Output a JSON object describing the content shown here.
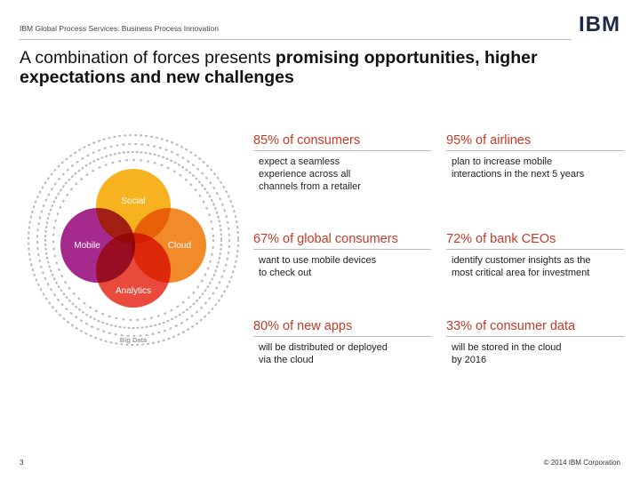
{
  "header": {
    "text": "IBM Global Process Services: Business Process Innovation",
    "logo": "IBM"
  },
  "title": {
    "plain": "A combination of forces presents",
    "emphasis": "promising opportunities, higher expectations and new challenges"
  },
  "diagram": {
    "labels": [
      "Social",
      "Mobile",
      "Cloud",
      "Analytics"
    ],
    "outer_label": "Big Data"
  },
  "stats": [
    {
      "headline": "85% of consumers",
      "description": [
        "expect a seamless",
        "experience across all",
        "channels from a retailer"
      ]
    },
    {
      "headline": "95% of airlines",
      "description": [
        "plan to increase mobile",
        "interactions in the next 5 years"
      ]
    },
    {
      "headline": "67% of global consumers",
      "description": [
        "want to use mobile devices",
        "to check out"
      ]
    },
    {
      "headline": "72% of bank CEOs",
      "description": [
        "identify customer insights as the",
        "most critical area for investment"
      ]
    },
    {
      "headline": "80% of new apps",
      "description": [
        "will be distributed or deployed",
        "via the cloud"
      ]
    },
    {
      "headline": "33% of consumer data",
      "description": [
        "will be stored in the cloud",
        "by 2016"
      ]
    }
  ],
  "footer": {
    "page": "3",
    "copyright": "© 2014 IBM Corporation"
  }
}
